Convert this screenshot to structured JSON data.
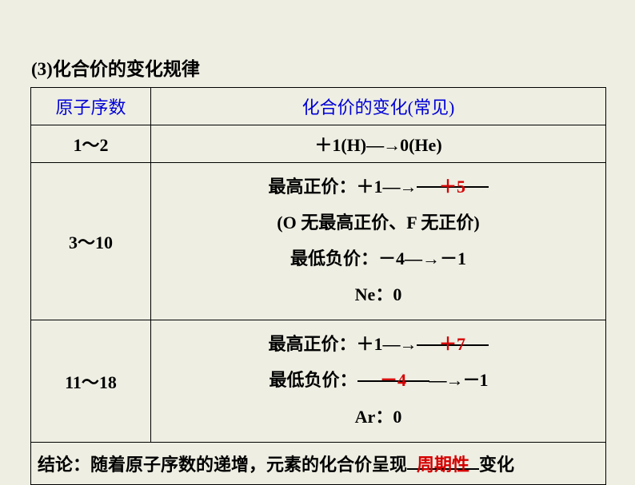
{
  "title": "(3)化合价的变化规律",
  "table": {
    "header_col1": "原子序数",
    "header_col2": "化合价的变化(常见)",
    "row1_c1": "1～2",
    "row1_c2_pre": "＋1(H)",
    "arrow": "―→",
    "row1_c2_post": "0(He)",
    "row2_c1": "3～10",
    "row2_l1_pre": "最高正价：＋1",
    "row2_l1_ans": "＋5",
    "row2_l2": "(O 无最高正价、F 无正价)",
    "row2_l3": "最低负价：－4―→－1",
    "row2_l4": "Ne：0",
    "row3_c1": "11～18",
    "row3_l1_pre": "最高正价：＋1",
    "row3_l1_ans": "＋7",
    "row3_l2_pre": "最低负价：",
    "row3_l2_ans": "－4",
    "row3_l2_post": "―→－1",
    "row3_l3": "Ar：0",
    "concl_pre": "结论：随着原子序数的递增，元素的化合价呈现",
    "concl_ans": "周期性",
    "concl_post": "变化"
  },
  "colors": {
    "bg": "#eeeee3",
    "blue": "#0000d6",
    "red": "#d60000",
    "black": "#000000"
  }
}
